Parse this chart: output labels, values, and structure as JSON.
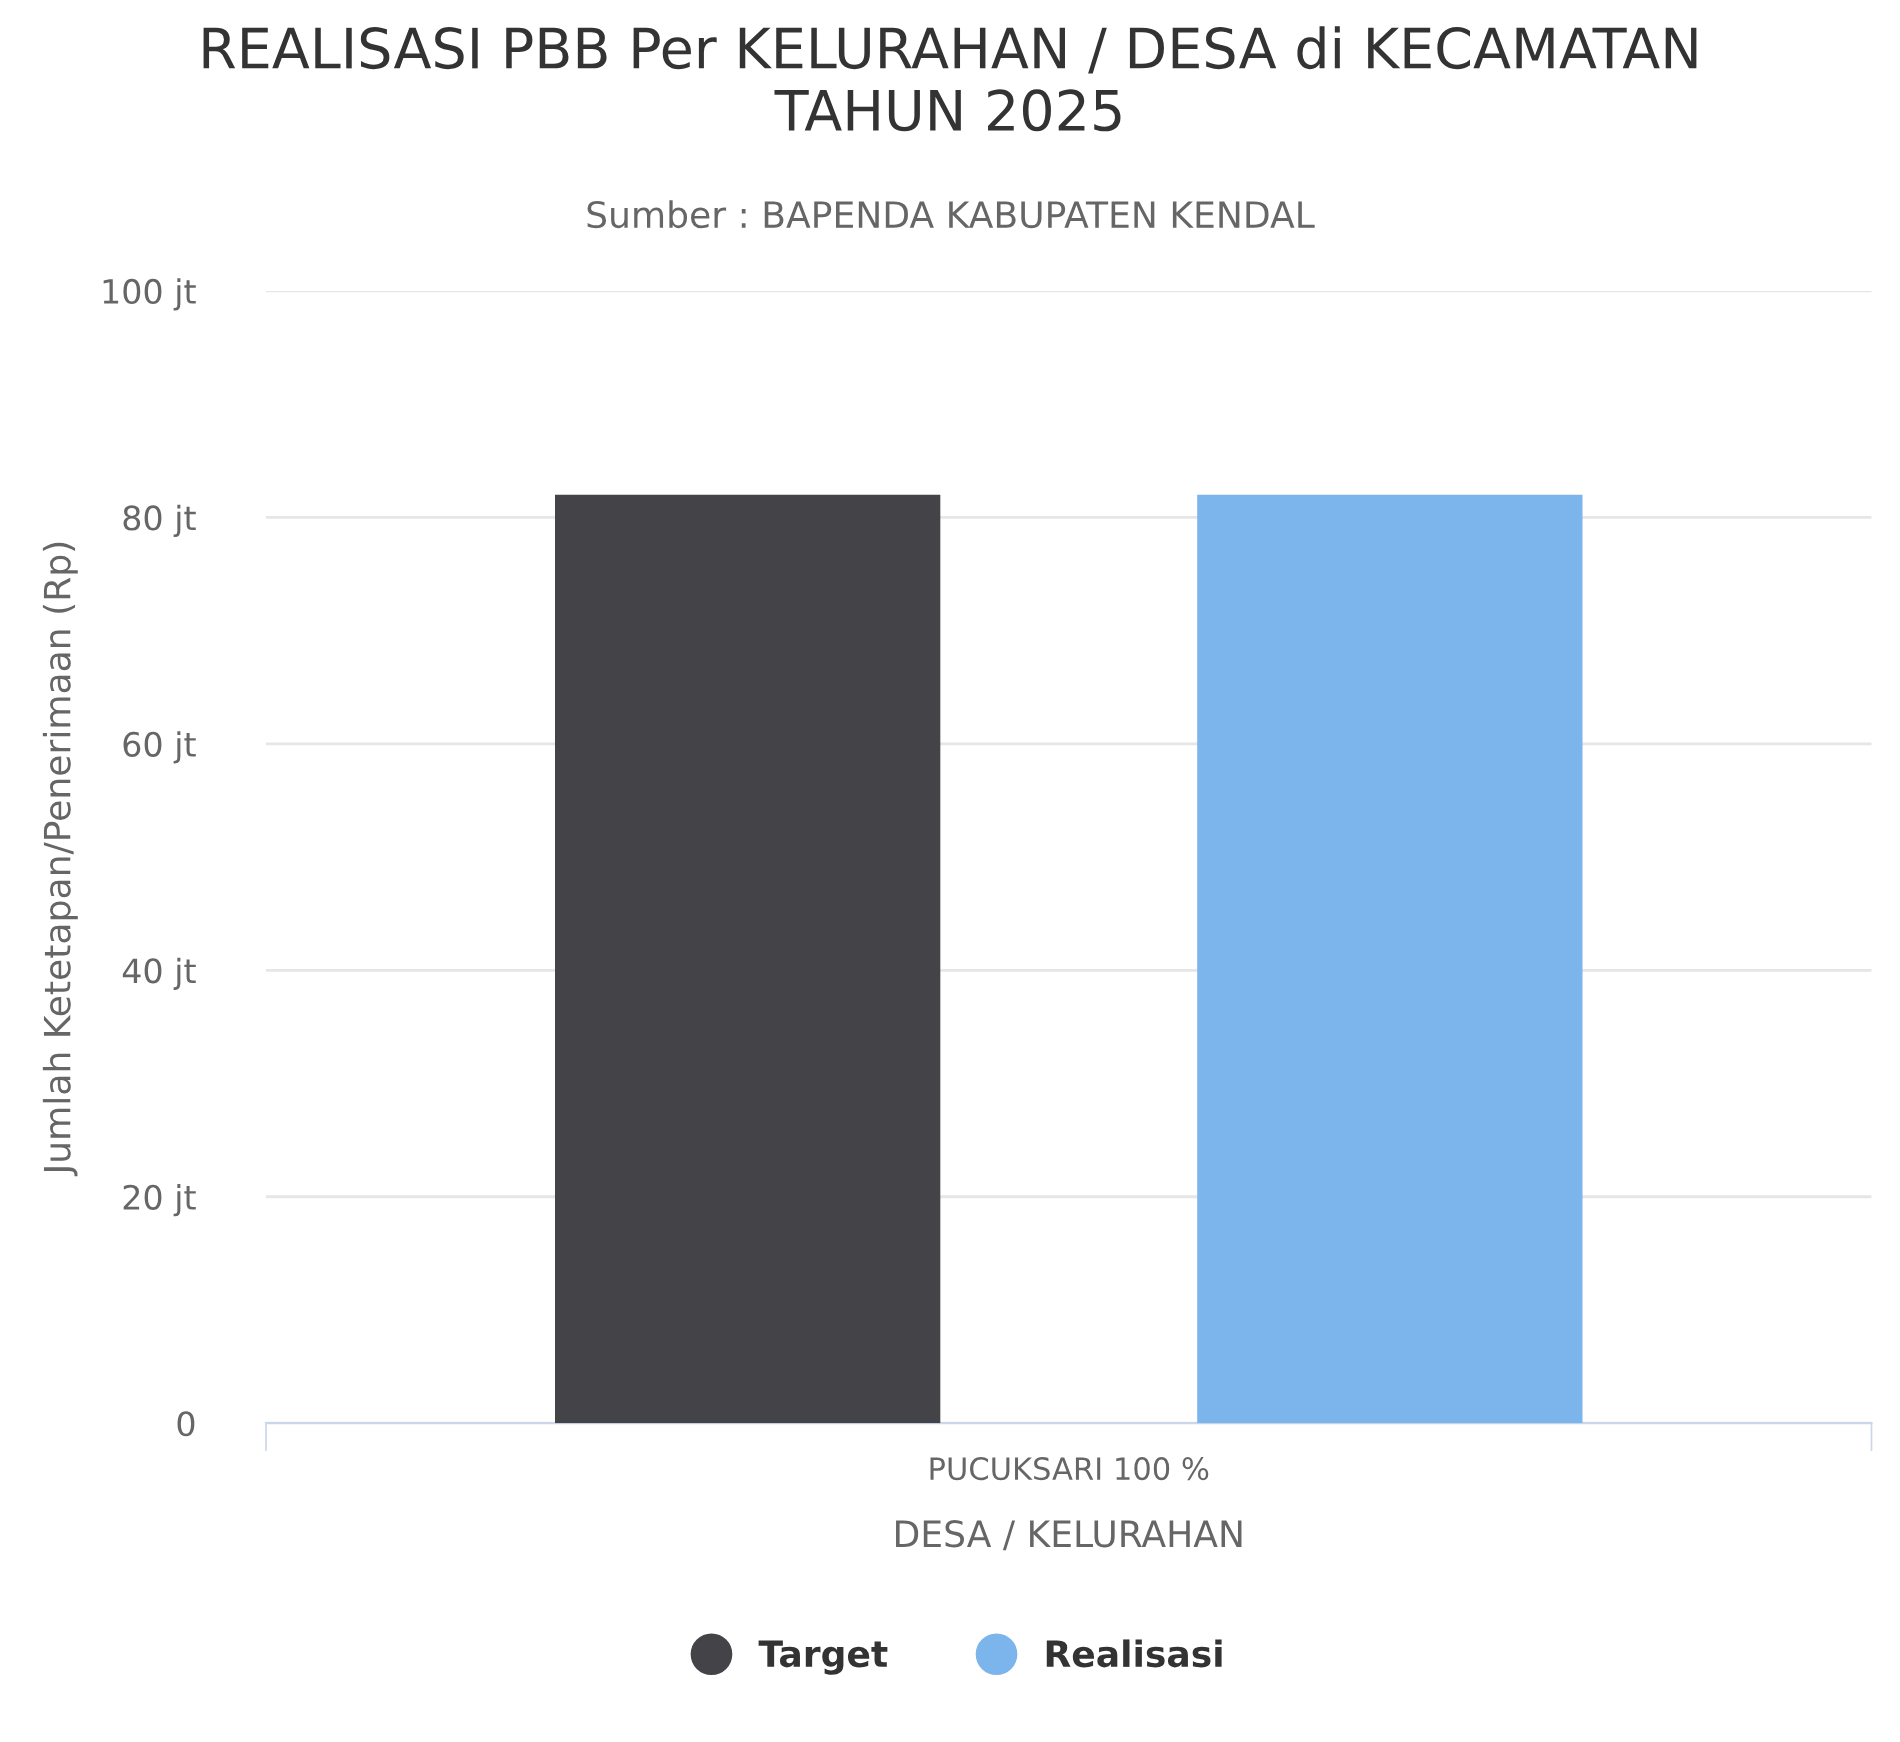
{
  "chart_data": {
    "type": "bar",
    "title": "REALISASI PBB Per KELURAHAN / DESA di KECAMATAN\nTAHUN 2025",
    "subtitle": "Sumber : BAPENDA KABUPATEN KENDAL",
    "xlabel": "DESA / KELURAHAN",
    "ylabel": "Jumlah Ketetapan/Penerimaan (Rp)",
    "categories": [
      "PUCUKSARI 100 %"
    ],
    "series": [
      {
        "name": "Target",
        "color": "#434348",
        "values": [
          82
        ]
      },
      {
        "name": "Realisasi",
        "color": "#7cb5ec",
        "values": [
          82
        ]
      }
    ],
    "ylim": [
      0,
      100
    ],
    "yticks": [
      0,
      {
        "value": 20,
        "label": "20 jt"
      },
      {
        "value": 40,
        "label": "40 jt"
      },
      {
        "value": 60,
        "label": "60 jt"
      },
      {
        "value": 80,
        "label": "80 jt"
      },
      {
        "value": 100,
        "label": "100 jt"
      }
    ],
    "grid": "y",
    "legend": "bottom"
  }
}
